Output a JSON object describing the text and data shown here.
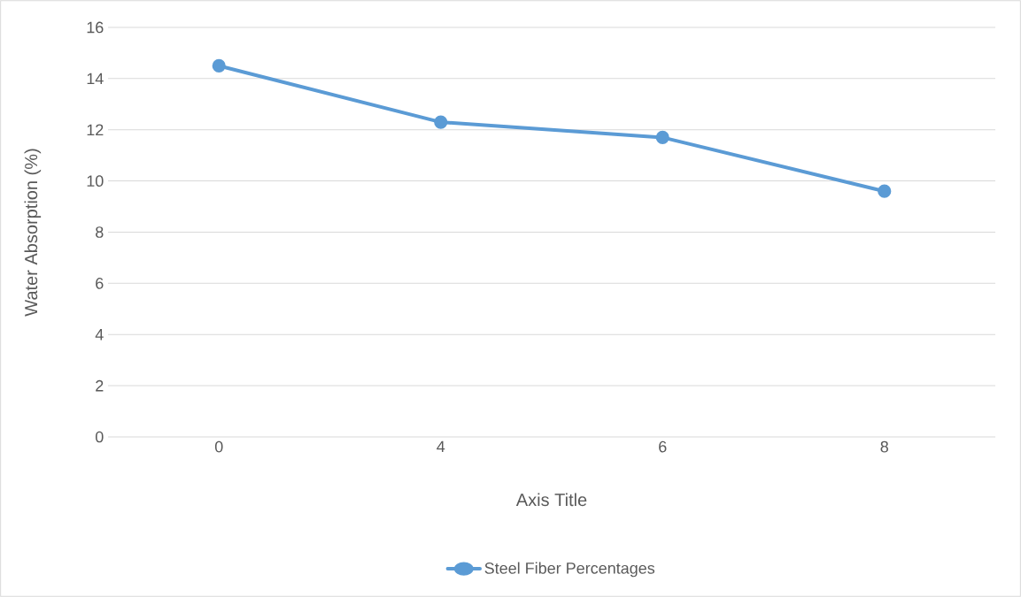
{
  "chart_data": {
    "type": "line",
    "xlabel": "Axis Title",
    "ylabel": "Water Absorption (%)",
    "categories": [
      "0",
      "4",
      "6",
      "8"
    ],
    "series": [
      {
        "name": "Steel Fiber Percentages",
        "color": "#5b9bd5",
        "values": [
          14.5,
          12.3,
          11.7,
          9.6
        ]
      }
    ],
    "ylim": [
      0,
      16
    ],
    "yticks": [
      0,
      2,
      4,
      6,
      8,
      10,
      12,
      14,
      16
    ],
    "grid": "y",
    "legend": "bottom",
    "marker": "circle",
    "line_style": "solid"
  }
}
